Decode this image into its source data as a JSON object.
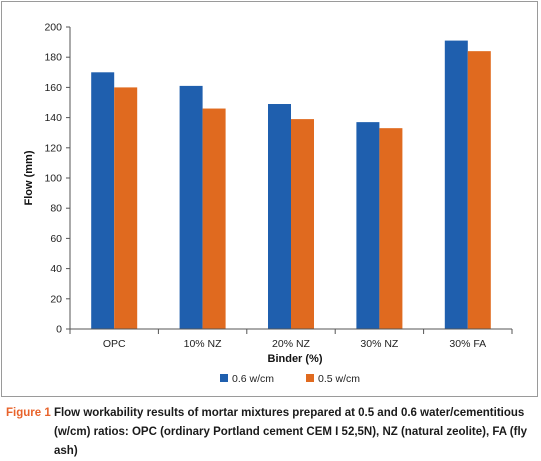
{
  "chart_data": {
    "type": "bar",
    "categories": [
      "OPC",
      "10% NZ",
      "20% NZ",
      "30% NZ",
      "30% FA"
    ],
    "series": [
      {
        "name": "0.6 w/cm",
        "values": [
          170,
          161,
          149,
          137,
          191
        ],
        "color": "#1f5fae"
      },
      {
        "name": "0.5 w/cm",
        "values": [
          160,
          146,
          139,
          133,
          184
        ],
        "color": "#e06a1f"
      }
    ],
    "xlabel": "Binder (%)",
    "ylabel": "Flow (mm)",
    "ylim": [
      0,
      200
    ],
    "yticks": [
      0,
      20,
      40,
      60,
      80,
      100,
      120,
      140,
      160,
      180,
      200
    ],
    "grid": false,
    "legend_position": "bottom"
  },
  "caption": {
    "label": "Figure 1",
    "line1": "Flow workability results of mortar mixtures prepared at 0.5 and 0.6 water/cementitious",
    "line2": "(w/cm) ratios: OPC (ordinary Portland cement CEM I 52,5N), NZ (natural zeolite), FA (fly ash)"
  }
}
